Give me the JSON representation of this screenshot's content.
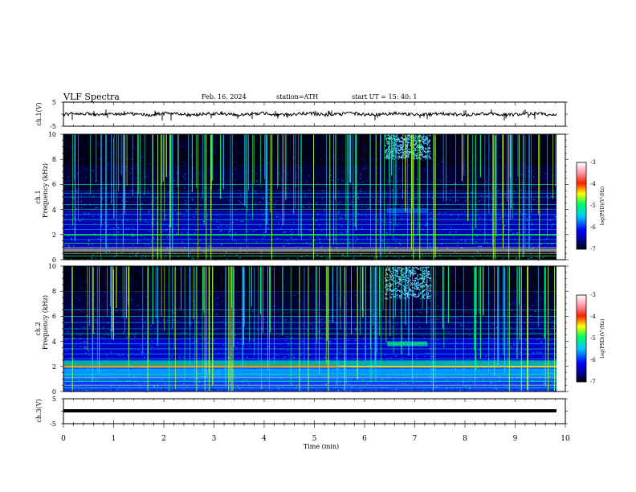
{
  "header": {
    "title": "VLF  Spectra",
    "date": "Feb. 16, 2024",
    "station": "station=ATH",
    "start": "start  UT  =   15: 40: 1"
  },
  "chart_data": [
    {
      "type": "line",
      "name": "ch1-waveform",
      "ylabel": "ch.1(V)",
      "ylim": [
        -5,
        5
      ],
      "yticks": [
        "5",
        "-5"
      ],
      "baseline": -0.1
    },
    {
      "type": "heatmap",
      "name": "ch1-spectrogram",
      "ylabel_top": "ch.1",
      "ylabel": "Frequency  (kHz)",
      "ylim": [
        0,
        10
      ],
      "yticks": [
        "0",
        "2",
        "4",
        "6",
        "8",
        "10"
      ],
      "colorbar": {
        "label": "log(PSD)(V²/Hz)",
        "ticks": [
          "-3",
          "-4",
          "-5",
          "-6",
          "-7"
        ],
        "range": [
          -7,
          -3
        ]
      }
    },
    {
      "type": "heatmap",
      "name": "ch2-spectrogram",
      "ylabel_top": "ch.2",
      "ylabel": "Frequency  (kHz)",
      "ylim": [
        0,
        10
      ],
      "yticks": [
        "0",
        "2",
        "4",
        "6",
        "8",
        "10"
      ],
      "colorbar": {
        "label": "log(PSD)(V²/Hz)",
        "ticks": [
          "-3",
          "-4",
          "-5",
          "-6",
          "-7"
        ],
        "range": [
          -7,
          -3
        ]
      }
    },
    {
      "type": "line",
      "name": "ch3-waveform",
      "ylabel": "ch.3(V)",
      "ylim": [
        -5,
        5
      ],
      "yticks": [
        "5",
        "-5"
      ],
      "baseline": -1.6
    }
  ],
  "xaxis": {
    "label": "Time  (min)",
    "xlim": [
      0,
      10
    ],
    "ticks": [
      "0",
      "1",
      "2",
      "3",
      "4",
      "5",
      "6",
      "7",
      "8",
      "9",
      "10"
    ]
  }
}
